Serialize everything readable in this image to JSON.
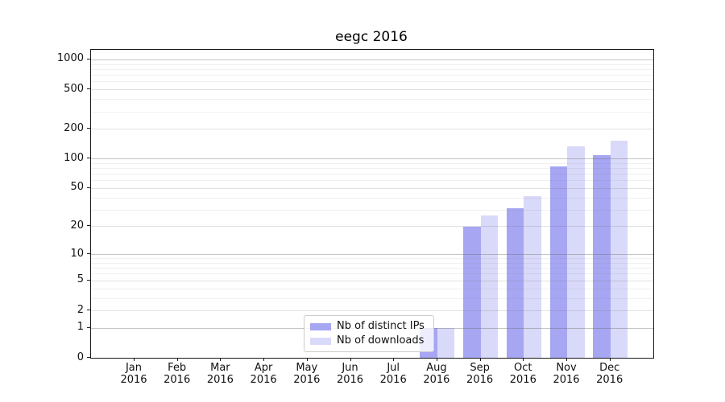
{
  "chart_data": {
    "type": "bar",
    "title": "eegc 2016",
    "scale": "log1p",
    "categories": [
      "Jan 2016",
      "Feb 2016",
      "Mar 2016",
      "Apr 2016",
      "May 2016",
      "Jun 2016",
      "Jul 2016",
      "Aug 2016",
      "Sep 2016",
      "Oct 2016",
      "Nov 2016",
      "Dec 2016"
    ],
    "series": [
      {
        "name": "Nb of distinct IPs",
        "color": "#a6a6f2",
        "values": [
          0,
          0,
          0,
          0,
          0,
          0,
          0,
          1,
          20,
          31,
          83,
          108
        ]
      },
      {
        "name": "Nb of downloads",
        "color": "#d9d9f9",
        "values": [
          0,
          0,
          0,
          0,
          0,
          0,
          0,
          1,
          26,
          41,
          133,
          151
        ]
      }
    ],
    "yticks": [
      0,
      1,
      2,
      5,
      10,
      20,
      50,
      100,
      200,
      500,
      1000
    ],
    "yticks_minor": [
      3,
      4,
      6,
      7,
      8,
      9,
      30,
      40,
      60,
      70,
      80,
      90,
      300,
      400,
      600,
      700,
      800,
      900
    ],
    "ylim": [
      0,
      1250
    ],
    "xlabel": "",
    "ylabel": "",
    "grid": "both-horizontal",
    "legend_position": "lower center",
    "colors": {
      "spine": "#1a1a1a",
      "series_dark": "#a6a6f2",
      "series_light": "#d9d9f9",
      "legend_border": "#cccccc"
    }
  }
}
